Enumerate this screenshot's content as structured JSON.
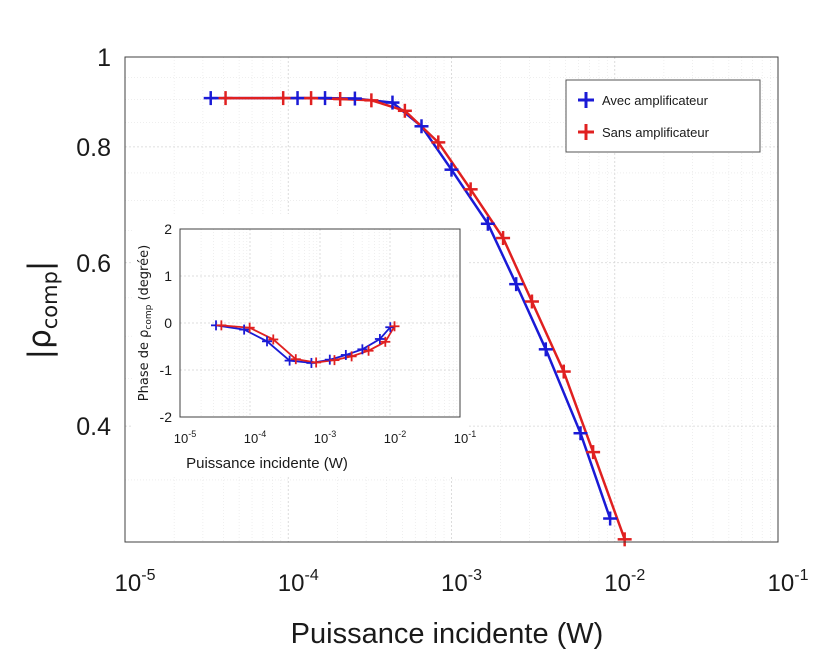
{
  "chart_data": [
    {
      "type": "line",
      "title": "",
      "xlabel": "Puissance incidente (W)",
      "ylabel_main": "|ρ",
      "ylabel_sub": "comp",
      "ylabel_end": "|",
      "xscale": "log",
      "yscale": "log",
      "xlim": [
        1e-05,
        0.1
      ],
      "ylim": [
        0.3,
        1.0
      ],
      "x_ticks": [
        {
          "mantissa": "10",
          "exponent": "-5",
          "value": 1e-05
        },
        {
          "mantissa": "10",
          "exponent": "-4",
          "value": 0.0001
        },
        {
          "mantissa": "10",
          "exponent": "-3",
          "value": 0.001
        },
        {
          "mantissa": "10",
          "exponent": "-2",
          "value": 0.01
        },
        {
          "mantissa": "10",
          "exponent": "-1",
          "value": 0.1
        }
      ],
      "y_ticks": [
        {
          "label": "0.4",
          "value": 0.4
        },
        {
          "label": "0.6",
          "value": 0.6
        },
        {
          "label": "0.8",
          "value": 0.8
        },
        {
          "label": "1",
          "value": 1.0
        }
      ],
      "grid": true,
      "legend_position": "top-right",
      "series": [
        {
          "name": "Avec amplificateur",
          "color": "#1a1ad6",
          "marker": "plus",
          "x": [
            3.35e-05,
            0.000114,
            0.000168,
            0.000256,
            0.000435,
            0.000655,
            0.001,
            0.00167,
            0.00249,
            0.00378,
            0.00617,
            0.00937
          ],
          "y": [
            0.903,
            0.903,
            0.903,
            0.902,
            0.893,
            0.842,
            0.756,
            0.661,
            0.569,
            0.484,
            0.393,
            0.318
          ]
        },
        {
          "name": "Sans amplificateur",
          "color": "#e02020",
          "marker": "plus",
          "x": [
            4.13e-05,
            9.31e-05,
            0.000138,
            0.000208,
            0.000323,
            0.000518,
            0.00083,
            0.00131,
            0.00207,
            0.00311,
            0.00487,
            0.00737,
            0.0115
          ],
          "y": [
            0.903,
            0.903,
            0.903,
            0.901,
            0.898,
            0.875,
            0.809,
            0.72,
            0.638,
            0.545,
            0.458,
            0.375,
            0.302
          ]
        }
      ]
    },
    {
      "type": "line",
      "title": "",
      "xlabel": "Puissance incidente (W)",
      "ylabel_prefix": "Phase de ρ",
      "ylabel_sub": "comp",
      "ylabel_suffix": " (degrée)",
      "xscale": "log",
      "xlim": [
        1e-05,
        0.1
      ],
      "ylim": [
        -2,
        2
      ],
      "x_ticks": [
        {
          "mantissa": "10",
          "exponent": "-5",
          "value": 1e-05
        },
        {
          "mantissa": "10",
          "exponent": "-4",
          "value": 0.0001
        },
        {
          "mantissa": "10",
          "exponent": "-3",
          "value": 0.001
        },
        {
          "mantissa": "10",
          "exponent": "-2",
          "value": 0.01
        },
        {
          "mantissa": "10",
          "exponent": "-1",
          "value": 0.1
        }
      ],
      "y_ticks": [
        {
          "label": "2",
          "value": 2
        },
        {
          "label": "1",
          "value": 1
        },
        {
          "label": "0",
          "value": 0
        },
        {
          "label": "-1",
          "value": -1
        },
        {
          "label": "-2",
          "value": -2
        }
      ],
      "grid": true,
      "series": [
        {
          "name": "Avec amplificateur",
          "color": "#1a1ad6",
          "marker": "plus",
          "x": [
            3.27e-05,
            8.25e-05,
            0.000175,
            0.000368,
            0.000754,
            0.00138,
            0.00234,
            0.00403,
            0.00717,
            0.0101
          ],
          "y": [
            -0.05,
            -0.14,
            -0.39,
            -0.8,
            -0.85,
            -0.78,
            -0.68,
            -0.56,
            -0.34,
            -0.09
          ]
        },
        {
          "name": "Sans amplificateur",
          "color": "#e02020",
          "marker": "plus",
          "x": [
            3.9e-05,
            9.89e-05,
            0.000215,
            0.000451,
            0.000881,
            0.00161,
            0.00283,
            0.00494,
            0.00857,
            0.0116
          ],
          "y": [
            -0.05,
            -0.1,
            -0.35,
            -0.77,
            -0.84,
            -0.79,
            -0.71,
            -0.59,
            -0.4,
            -0.07
          ]
        }
      ]
    }
  ]
}
